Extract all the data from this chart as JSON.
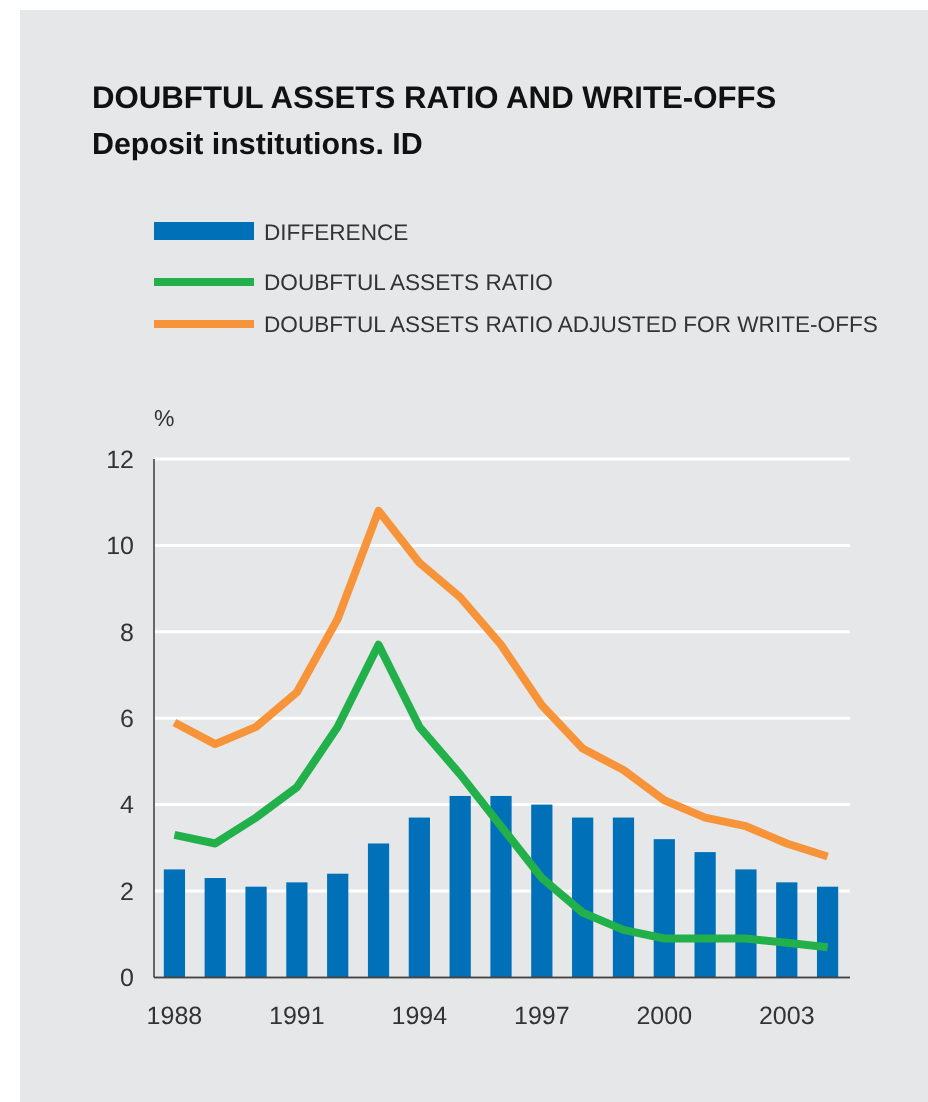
{
  "chart_data": {
    "type": "bar",
    "title": "DOUBFTUL ASSETS RATIO AND WRITE-OFFS",
    "subtitle": "Deposit institutions. ID",
    "ylabel": "%",
    "categories": [
      "1988",
      null,
      null,
      "1991",
      null,
      null,
      "1994",
      null,
      null,
      "1997",
      null,
      null,
      "2000",
      null,
      null,
      "2003",
      null
    ],
    "series": [
      {
        "name": "DIFFERENCE",
        "color": "#0070b8",
        "values": [
          2.5,
          2.3,
          2.1,
          2.2,
          2.4,
          3.1,
          3.7,
          4.2,
          4.2,
          4.0,
          3.7,
          3.7,
          3.2,
          2.9,
          2.5,
          2.2,
          2.1
        ]
      },
      {
        "type": "line",
        "name": "DOUBFTUL ASSETS RATIO",
        "color": "#22b04b",
        "values": [
          3.3,
          3.1,
          3.7,
          4.4,
          5.8,
          7.7,
          5.8,
          4.7,
          3.5,
          2.3,
          1.5,
          1.1,
          0.9,
          0.9,
          0.9,
          0.8,
          0.7
        ]
      },
      {
        "type": "line",
        "name": "DOUBFTUL ASSETS RATIO ADJUSTED FOR WRITE-OFFS",
        "color": "#f7943a",
        "values": [
          5.9,
          5.4,
          5.8,
          6.6,
          8.3,
          10.8,
          9.6,
          8.8,
          7.7,
          6.3,
          5.3,
          4.8,
          4.1,
          3.7,
          3.5,
          3.1,
          2.8
        ]
      }
    ],
    "ylim": [
      0,
      12
    ],
    "yticks": [
      0,
      2,
      4,
      6,
      8,
      10,
      12
    ],
    "grid": "y",
    "legend": "top left",
    "line_style": "solid"
  }
}
